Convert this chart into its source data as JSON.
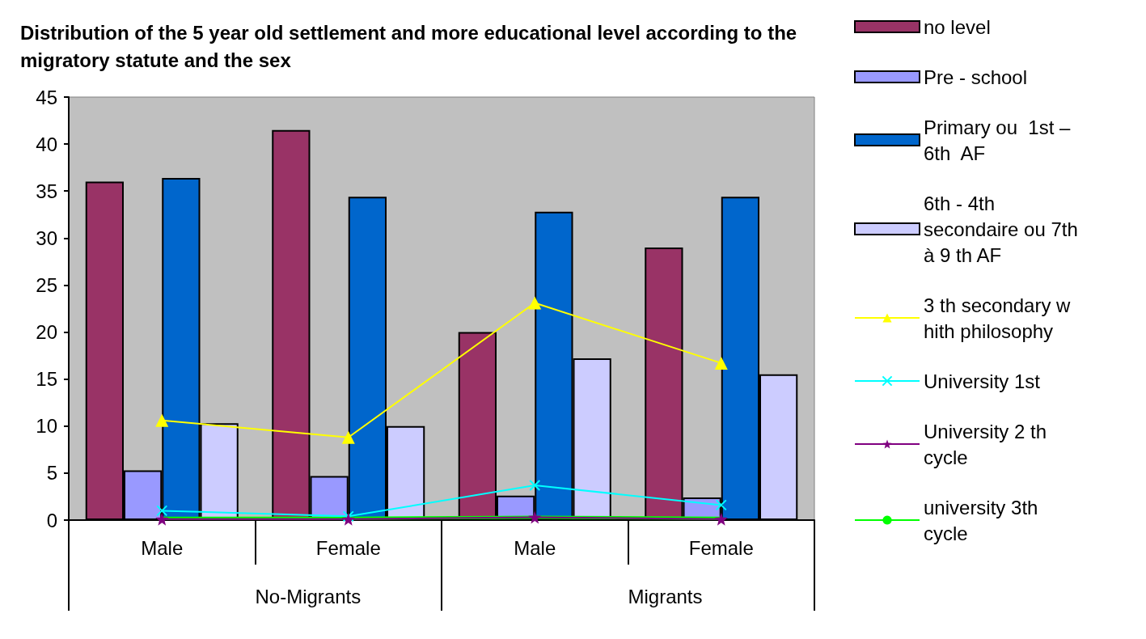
{
  "chart_data": {
    "type": "bar",
    "title": "Distribution of the 5 year old settlement and more educational level according to the migratory statute and the sex",
    "categories": [
      "Male",
      "Female",
      "Male",
      "Female"
    ],
    "annotations": [
      "No-Migrants",
      "Migrants"
    ],
    "series": [
      {
        "name": "no level",
        "color": "#993366",
        "values": [
          36,
          41.5,
          20,
          29
        ]
      },
      {
        "name": "Pre - school",
        "color": "#9999ff",
        "values": [
          5.3,
          4.7,
          2.6,
          2.4
        ]
      },
      {
        "name": "Primary ou  1st – 6th  AF",
        "color": "#0066cc",
        "values": [
          36.4,
          34.4,
          32.8,
          34.4
        ]
      },
      {
        "name": "6th - 4th secondaire ou 7th à 9 th AF",
        "color": "#ccccff",
        "values": [
          10.3,
          10,
          17.2,
          15.5
        ]
      },
      {
        "name": "3 th secondary w hith philosophy",
        "type": "line",
        "marker": "triangle",
        "color": "#ffff00",
        "values": [
          10.6,
          8.8,
          23.1,
          16.7
        ]
      },
      {
        "name": "University 1st",
        "type": "line",
        "marker": "cross",
        "color": "#00ffff",
        "values": [
          1,
          0.4,
          3.7,
          1.6
        ]
      },
      {
        "name": "University 2 th cycle",
        "type": "line",
        "marker": "star",
        "color": "#800080",
        "values": [
          0.1,
          0.1,
          0.3,
          0.1
        ]
      },
      {
        "name": "university 3th cycle",
        "type": "line",
        "marker": "none",
        "color": "#00ff00",
        "values": [
          0.2,
          0.2,
          0.3,
          0.2
        ]
      }
    ],
    "ylim": [
      0,
      45
    ],
    "yticks": [
      0,
      5,
      10,
      15,
      20,
      25,
      30,
      35,
      40,
      45
    ],
    "grid": false,
    "legend": "right",
    "line_style": "solid"
  }
}
